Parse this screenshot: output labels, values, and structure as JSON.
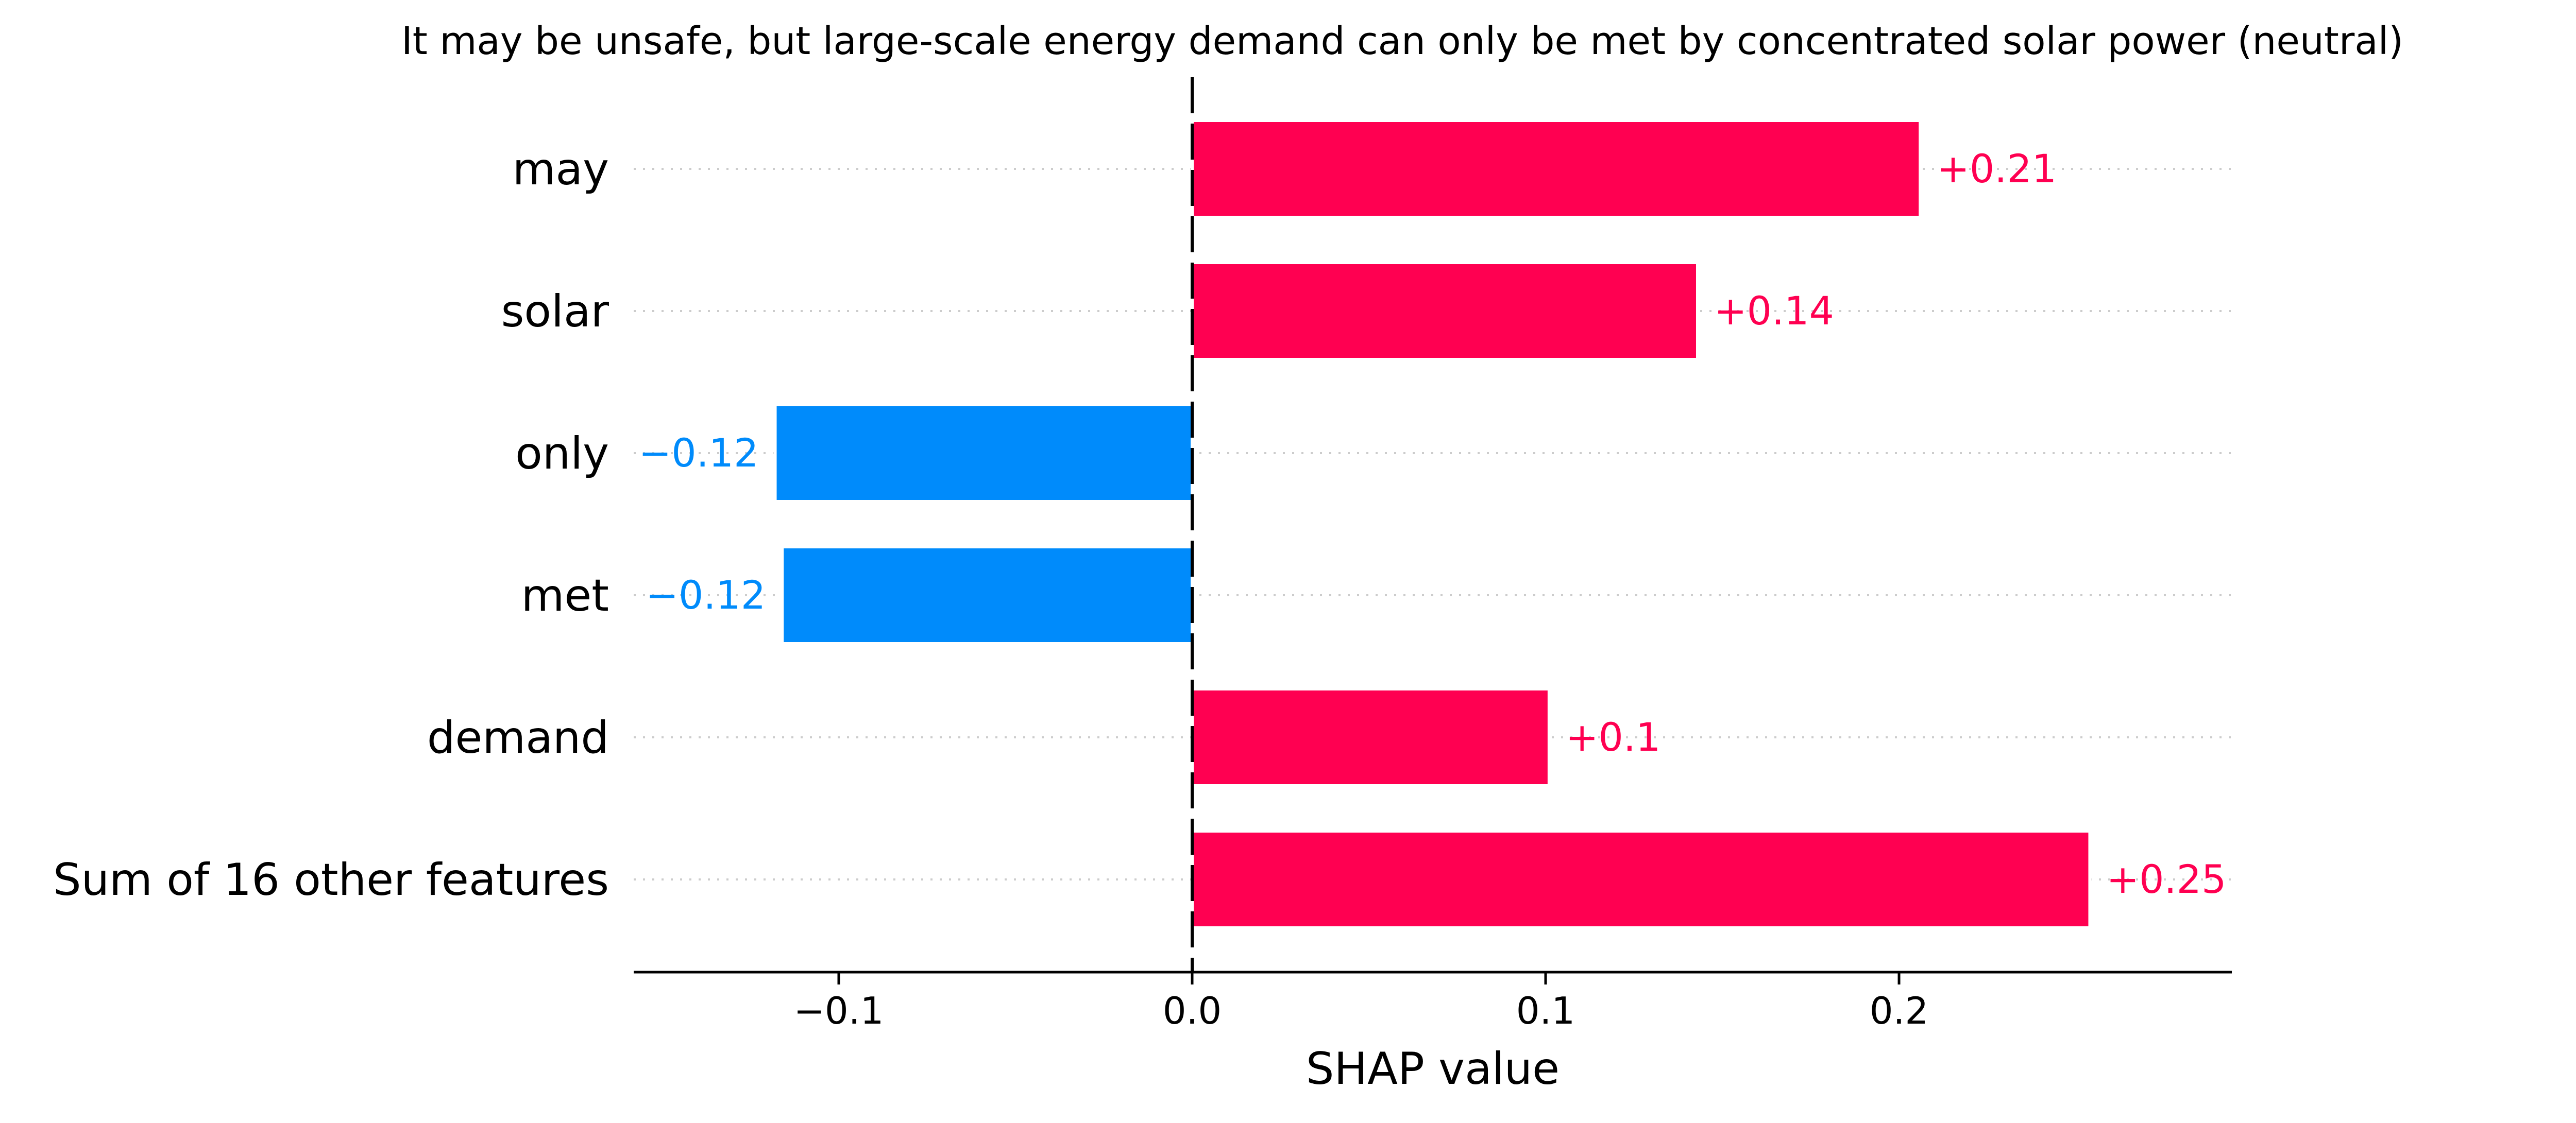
{
  "chart_data": {
    "type": "bar",
    "orientation": "horizontal",
    "title": "It may be unsafe, but large-scale energy demand can only be met by concentrated solar power (neutral)",
    "xlabel": "SHAP value",
    "ylabel": "",
    "xlim": [
      -0.158,
      0.293
    ],
    "x_ticks": [
      -0.1,
      0.0,
      0.1,
      0.2
    ],
    "x_tick_labels": [
      "−0.1",
      "0.0",
      "0.1",
      "0.2"
    ],
    "categories": [
      "may",
      "solar",
      "only",
      "met",
      "demand",
      "Sum of 16 other features"
    ],
    "values": [
      0.206,
      0.143,
      -0.118,
      -0.116,
      0.101,
      0.254
    ],
    "value_labels": [
      "+0.21",
      "+0.14",
      "−0.12",
      "−0.12",
      "+0.1",
      "+0.25"
    ],
    "grid": "dotted horizontal guides per row",
    "legend": "none",
    "colors": {
      "positive": "#ff0051",
      "negative": "#008bfb",
      "text": "#000000",
      "guide": "#cccccc",
      "zero_line": "#000000"
    }
  }
}
